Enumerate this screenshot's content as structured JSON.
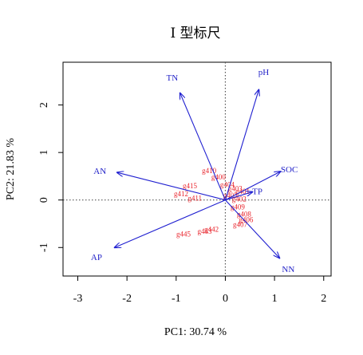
{
  "chart_data": {
    "type": "scatter",
    "title": "I 型标尺",
    "xlabel": "PC1: 30.74 %",
    "ylabel": "PC2: 21.83 %",
    "xlim": [
      -3.3,
      2.15
    ],
    "ylim": [
      -1.6,
      2.9
    ],
    "x_ticks": [
      -3,
      -2,
      -1,
      0,
      1,
      2
    ],
    "y_ticks": [
      -1,
      0,
      1,
      2
    ],
    "grid": false,
    "reference_lines": {
      "x": 0,
      "y": 0,
      "style": "dotted"
    },
    "colors": {
      "vectors": "#1f1fd0",
      "observations": "#e8222a",
      "reference": "#555555"
    },
    "vectors": [
      {
        "label": "TN",
        "x": -0.92,
        "y": 2.25,
        "label_x": -1.08,
        "label_y": 2.58
      },
      {
        "label": "pH",
        "x": 0.68,
        "y": 2.32,
        "label_x": 0.78,
        "label_y": 2.7
      },
      {
        "label": "AN",
        "x": -2.2,
        "y": 0.58,
        "label_x": -2.55,
        "label_y": 0.62
      },
      {
        "label": "SOC",
        "x": 1.12,
        "y": 0.6,
        "label_x": 1.3,
        "label_y": 0.65
      },
      {
        "label": "TP",
        "x": 0.55,
        "y": 0.17,
        "label_x": 0.65,
        "label_y": 0.19
      },
      {
        "label": "AP",
        "x": -2.25,
        "y": -1.0,
        "label_x": -2.62,
        "label_y": -1.2
      },
      {
        "label": "NN",
        "x": 1.1,
        "y": -1.22,
        "label_x": 1.28,
        "label_y": -1.45
      }
    ],
    "observations": [
      {
        "label": "g410",
        "x": -0.33,
        "y": 0.62
      },
      {
        "label": "g400",
        "x": -0.14,
        "y": 0.48
      },
      {
        "label": "g415",
        "x": -0.72,
        "y": 0.3
      },
      {
        "label": "g412",
        "x": -0.9,
        "y": 0.13
      },
      {
        "label": "g411",
        "x": -0.62,
        "y": 0.04
      },
      {
        "label": "g404",
        "x": 0.04,
        "y": 0.32
      },
      {
        "label": "g403",
        "x": 0.2,
        "y": 0.24
      },
      {
        "label": "g401",
        "x": 0.35,
        "y": 0.18
      },
      {
        "label": "g405",
        "x": 0.1,
        "y": 0.1
      },
      {
        "label": "g402",
        "x": 0.28,
        "y": 0.02
      },
      {
        "label": "g409",
        "x": 0.25,
        "y": -0.15
      },
      {
        "label": "g408",
        "x": 0.38,
        "y": -0.3
      },
      {
        "label": "g406",
        "x": 0.42,
        "y": -0.42
      },
      {
        "label": "g407",
        "x": 0.3,
        "y": -0.52
      },
      {
        "label": "g442",
        "x": -0.28,
        "y": -0.62
      },
      {
        "label": "g443",
        "x": -0.42,
        "y": -0.66
      },
      {
        "label": "g445",
        "x": -0.85,
        "y": -0.72
      }
    ]
  }
}
